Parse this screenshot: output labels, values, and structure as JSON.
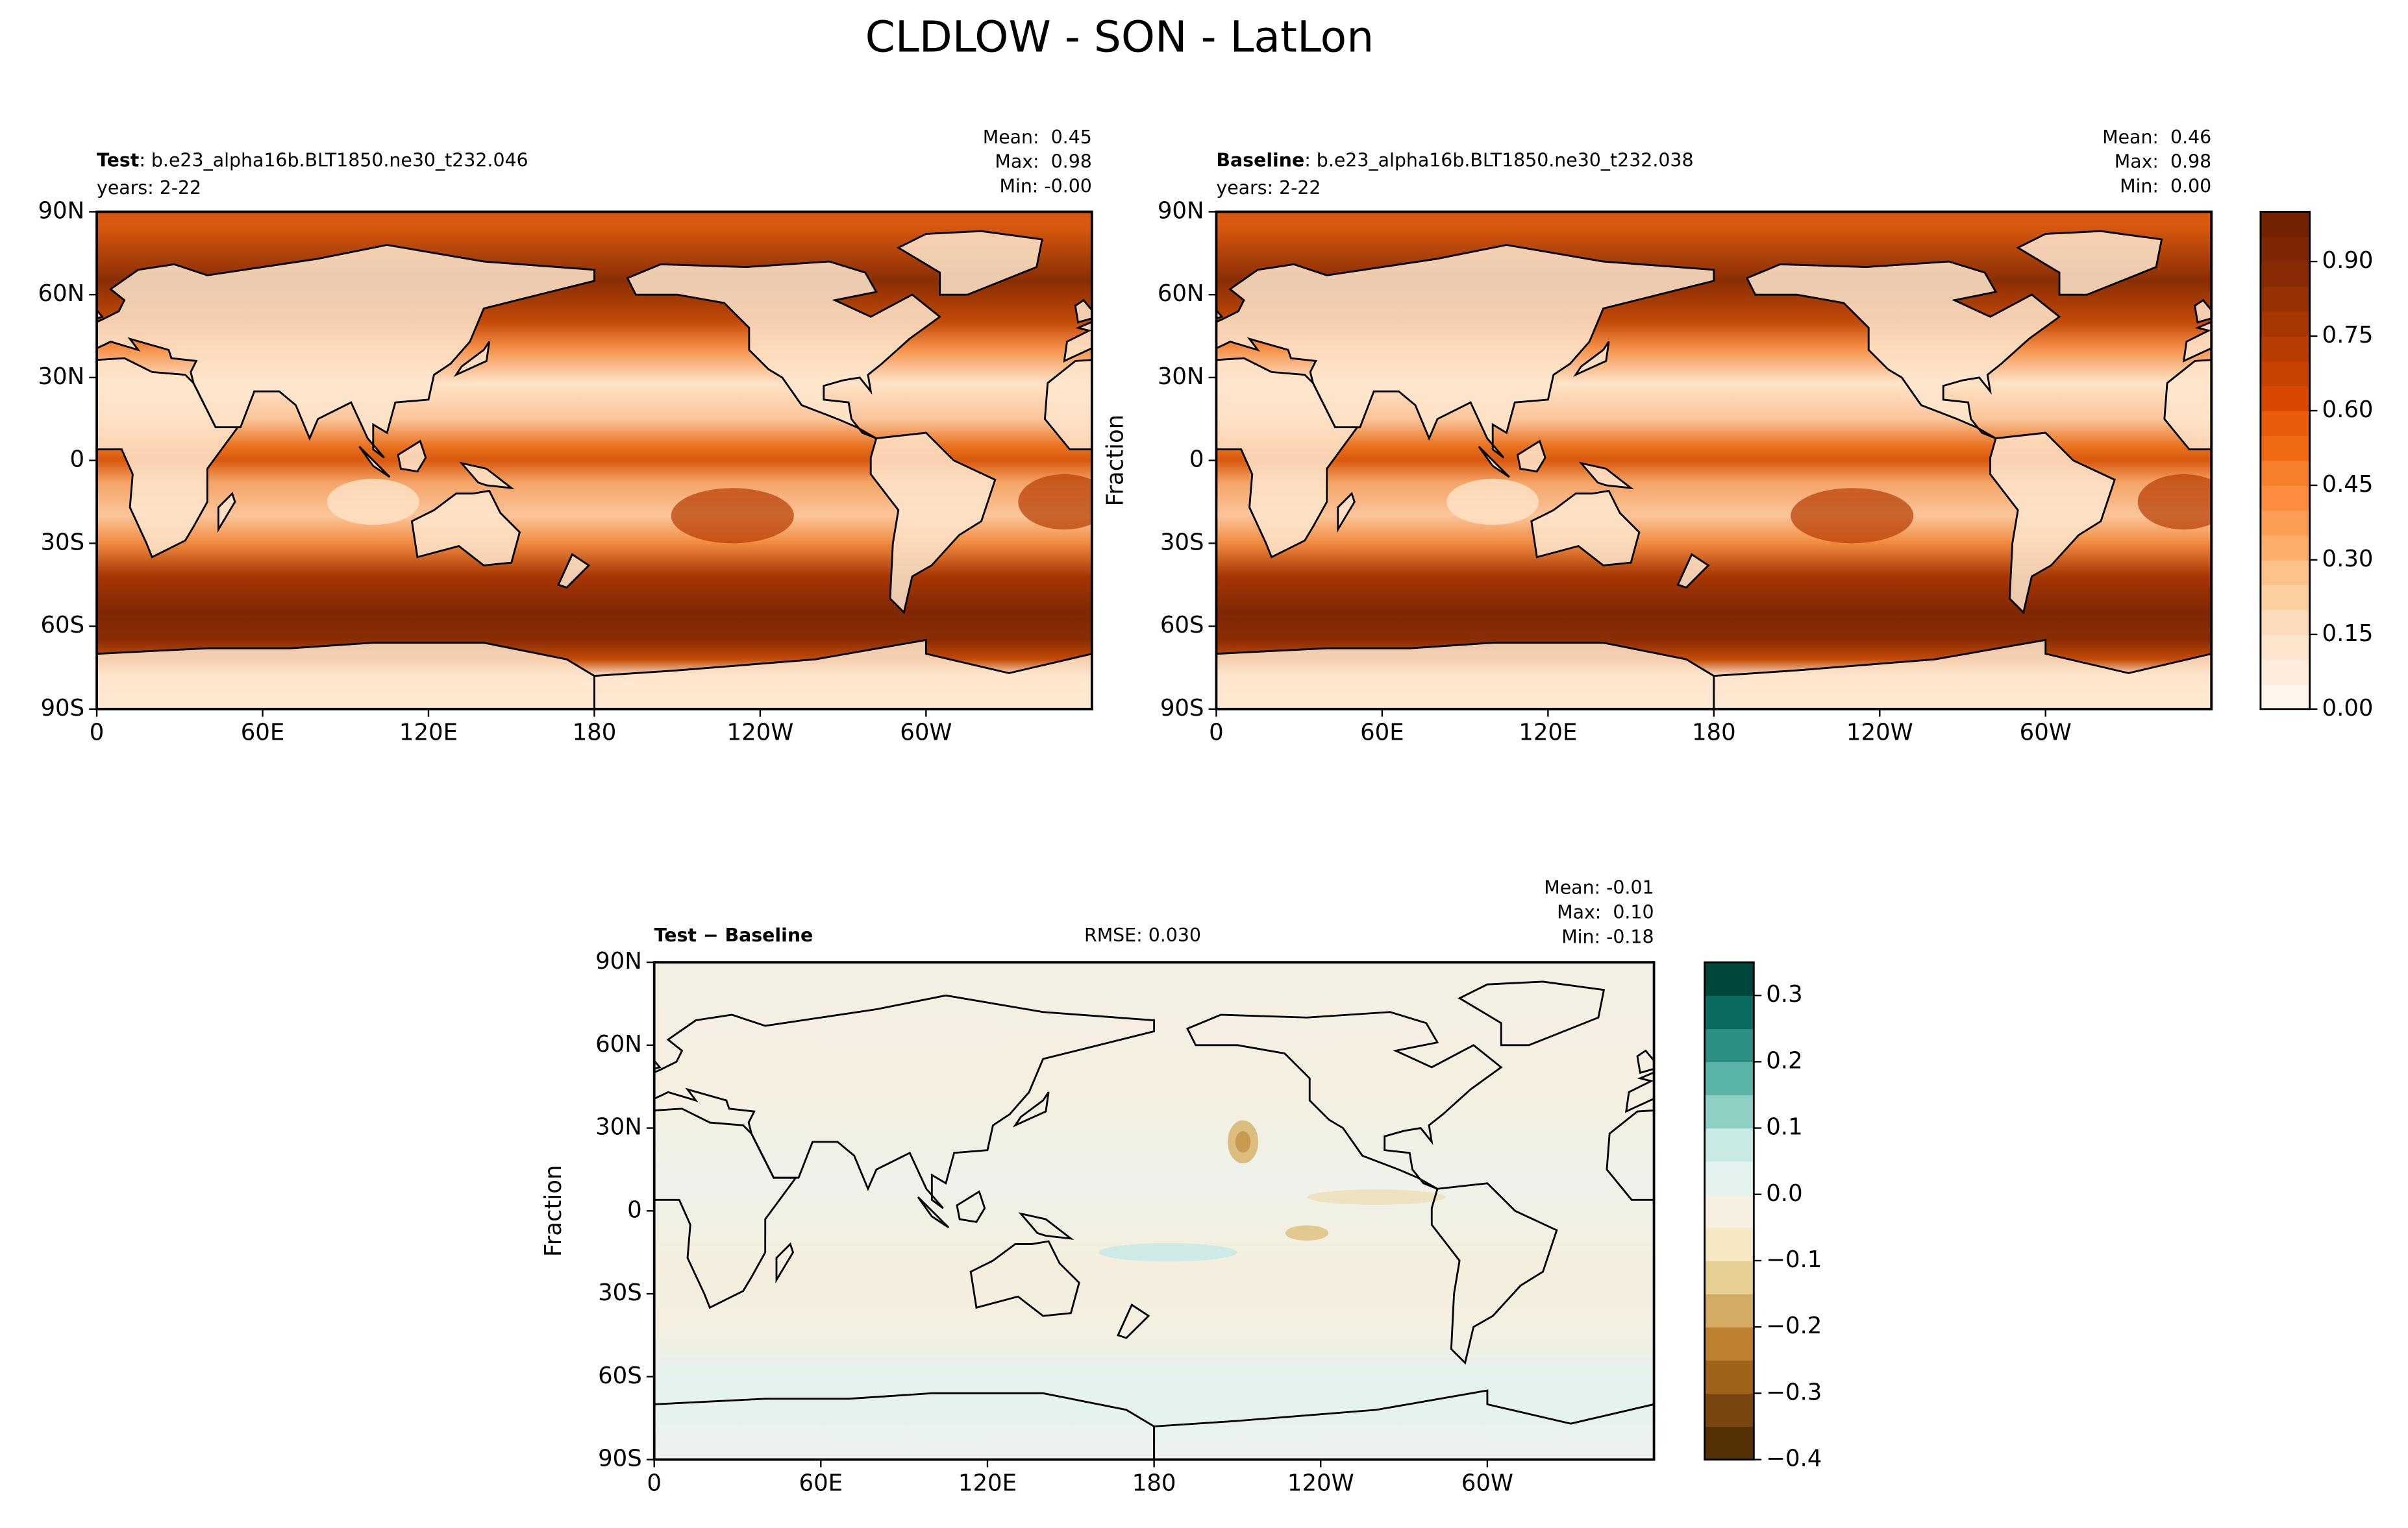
{
  "suptitle": "CLDLOW - SON - LatLon",
  "chart_data": [
    {
      "type": "map",
      "title": "Test",
      "subtitle": ": b.e23_alpha16b.BLT1850.ne30_t232.046",
      "years": "years: 2-22",
      "stats": [
        "Mean:  0.45",
        "Max:  0.98",
        "Min: -0.00"
      ],
      "xlim": [
        0,
        360
      ],
      "ylim": [
        -90,
        90
      ],
      "xticks": [
        0,
        {
          "value": 60,
          "label": "60E"
        },
        {
          "value": 120,
          "label": "120E"
        },
        180,
        {
          "value": 240,
          "label": "120W"
        },
        {
          "value": 300,
          "label": "60W"
        }
      ],
      "yticks": [
        {
          "value": -90,
          "label": "90S"
        },
        {
          "value": -60,
          "label": "60S"
        },
        {
          "value": -30,
          "label": "30S"
        },
        0,
        {
          "value": 30,
          "label": "30N"
        },
        {
          "value": 60,
          "label": "60N"
        },
        {
          "value": 90,
          "label": "90N"
        }
      ]
    },
    {
      "type": "map",
      "title": "Baseline",
      "subtitle": ": b.e23_alpha16b.BLT1850.ne30_t232.038",
      "years": "years: 2-22",
      "stats": [
        "Mean:  0.46",
        "Max:  0.98",
        "Min:  0.00"
      ],
      "ylabel": "Fraction",
      "xlim": [
        0,
        360
      ],
      "ylim": [
        -90,
        90
      ],
      "xticks": [
        0,
        {
          "value": 60,
          "label": "60E"
        },
        {
          "value": 120,
          "label": "120E"
        },
        180,
        {
          "value": 240,
          "label": "120W"
        },
        {
          "value": 300,
          "label": "60W"
        }
      ],
      "yticks": [
        {
          "value": -90,
          "label": "90S"
        },
        {
          "value": -60,
          "label": "60S"
        },
        {
          "value": -30,
          "label": "30S"
        },
        0,
        {
          "value": 30,
          "label": "30N"
        },
        {
          "value": 60,
          "label": "60N"
        },
        {
          "value": 90,
          "label": "90N"
        }
      ],
      "colorbar": {
        "ylim": [
          0,
          1.0
        ],
        "levels": [
          0,
          0.05,
          0.1,
          0.15,
          0.2,
          0.25,
          0.3,
          0.35,
          0.4,
          0.45,
          0.5,
          0.55,
          0.6,
          0.65,
          0.7,
          0.75,
          0.8,
          0.85,
          0.9,
          0.95,
          1.0
        ],
        "colors": [
          "#fff5eb",
          "#feeddc",
          "#fee6ce",
          "#fddbb8",
          "#fdd0a2",
          "#fdc18a",
          "#fdae6b",
          "#fd9e54",
          "#fd8d3c",
          "#f67f2c",
          "#f16913",
          "#e85c0b",
          "#d94801",
          "#c84202",
          "#b63c03",
          "#a63603",
          "#973104",
          "#862b04",
          "#7f2704",
          "#732203"
        ],
        "yticks": [
          {
            "value": 0,
            "label": "0.00"
          },
          0.15,
          {
            "value": 0.3,
            "label": "0.30"
          },
          0.45,
          {
            "value": 0.6,
            "label": "0.60"
          },
          0.75,
          {
            "value": 0.9,
            "label": "0.90"
          }
        ]
      }
    },
    {
      "type": "map",
      "title": "Test − Baseline",
      "rmse": "RMSE: 0.030",
      "stats": [
        "Mean: -0.01",
        "Max:  0.10",
        "Min: -0.18"
      ],
      "ylabel": "Fraction",
      "xlim": [
        0,
        360
      ],
      "ylim": [
        -90,
        90
      ],
      "xticks": [
        0,
        {
          "value": 60,
          "label": "60E"
        },
        {
          "value": 120,
          "label": "120E"
        },
        180,
        {
          "value": 240,
          "label": "120W"
        },
        {
          "value": 300,
          "label": "60W"
        }
      ],
      "yticks": [
        {
          "value": -90,
          "label": "90S"
        },
        {
          "value": -60,
          "label": "60S"
        },
        {
          "value": -30,
          "label": "30S"
        },
        0,
        {
          "value": 30,
          "label": "30N"
        },
        {
          "value": 60,
          "label": "60N"
        },
        {
          "value": 90,
          "label": "90N"
        }
      ],
      "colorbar": {
        "ylim": [
          -0.4,
          0.35
        ],
        "levels": [
          -0.4,
          -0.35,
          -0.3,
          -0.25,
          -0.2,
          -0.15,
          -0.1,
          -0.05,
          0,
          0.05,
          0.1,
          0.15,
          0.2,
          0.25,
          0.3,
          0.35
        ],
        "colors": [
          "#543005",
          "#7a4610",
          "#a0631a",
          "#bf812d",
          "#d4ab62",
          "#e6cf93",
          "#f6e8c3",
          "#f5f0e1",
          "#e4f2f0",
          "#c7eae5",
          "#8fd0c5",
          "#5ab4a8",
          "#2e8f85",
          "#0b6b60",
          "#01463c"
        ],
        "yticks": [
          {
            "value": -0.4,
            "label": "−0.4"
          },
          {
            "value": -0.3,
            "label": "−0.3"
          },
          {
            "value": -0.2,
            "label": "−0.2"
          },
          {
            "value": -0.1,
            "label": "−0.1"
          },
          {
            "value": 0,
            "label": "0.0"
          },
          0.1,
          0.2,
          0.3
        ]
      }
    }
  ]
}
